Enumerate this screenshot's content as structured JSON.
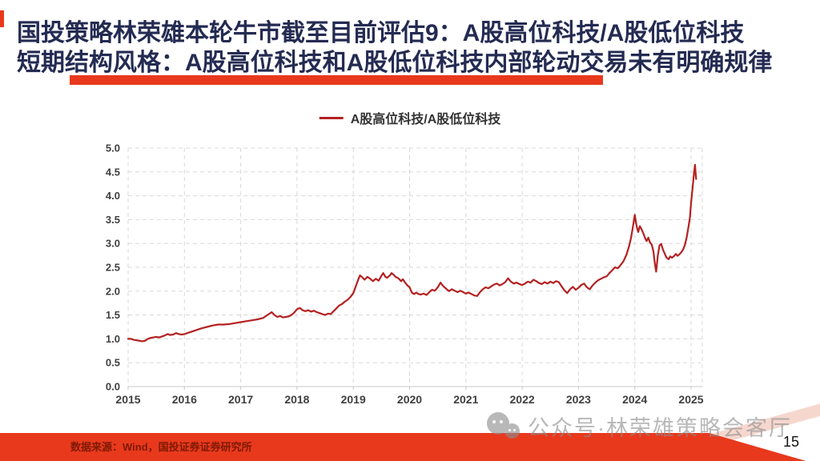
{
  "colors": {
    "accent": "#e8391d",
    "title": "#242b52",
    "line": "#b42121",
    "grid": "#d8d8d8",
    "tick": "#3f3f3f",
    "axis": "#c9c9c9",
    "footer_text": "#7e1a05",
    "watermark": "#8d8d8d",
    "page": "#111111",
    "stripe": "#f6d7ce"
  },
  "header": {
    "title_line1": "国投策略林荣雄本轮牛市截至目前评估9：A股高位科技/A股低位科技",
    "title_line2": "短期结构风格：A股高位科技和A股低位科技内部轮动交易未有明确规律"
  },
  "legend": {
    "label": "A股高位科技/A股低位科技"
  },
  "chart_data": {
    "type": "line",
    "title": "A股高位科技/A股低位科技",
    "xlabel": "",
    "ylabel": "",
    "xlim": [
      2015,
      2025.2
    ],
    "ylim": [
      0,
      5
    ],
    "grid": "dashed",
    "legend_position": "top-center",
    "xticks": [
      "2015",
      "2016",
      "2017",
      "2018",
      "2019",
      "2020",
      "2021",
      "2022",
      "2023",
      "2024",
      "2025"
    ],
    "yticks": [
      "0.0",
      "0.5",
      "1.0",
      "1.5",
      "2.0",
      "2.5",
      "3.0",
      "3.5",
      "4.0",
      "4.5",
      "5.0"
    ],
    "series": [
      {
        "name": "A股高位科技/A股低位科技",
        "points": [
          [
            2015.0,
            1.0
          ],
          [
            2015.05,
            1.0
          ],
          [
            2015.1,
            0.98
          ],
          [
            2015.15,
            0.97
          ],
          [
            2015.2,
            0.96
          ],
          [
            2015.25,
            0.95
          ],
          [
            2015.3,
            0.96
          ],
          [
            2015.35,
            1.0
          ],
          [
            2015.4,
            1.02
          ],
          [
            2015.45,
            1.03
          ],
          [
            2015.5,
            1.04
          ],
          [
            2015.55,
            1.03
          ],
          [
            2015.6,
            1.05
          ],
          [
            2015.65,
            1.07
          ],
          [
            2015.7,
            1.1
          ],
          [
            2015.75,
            1.08
          ],
          [
            2015.8,
            1.09
          ],
          [
            2015.85,
            1.12
          ],
          [
            2015.9,
            1.1
          ],
          [
            2015.95,
            1.09
          ],
          [
            2016.0,
            1.1
          ],
          [
            2016.1,
            1.14
          ],
          [
            2016.2,
            1.18
          ],
          [
            2016.3,
            1.22
          ],
          [
            2016.4,
            1.25
          ],
          [
            2016.5,
            1.28
          ],
          [
            2016.6,
            1.3
          ],
          [
            2016.7,
            1.3
          ],
          [
            2016.8,
            1.31
          ],
          [
            2016.9,
            1.33
          ],
          [
            2017.0,
            1.35
          ],
          [
            2017.1,
            1.37
          ],
          [
            2017.2,
            1.39
          ],
          [
            2017.3,
            1.41
          ],
          [
            2017.4,
            1.44
          ],
          [
            2017.5,
            1.52
          ],
          [
            2017.55,
            1.56
          ],
          [
            2017.6,
            1.5
          ],
          [
            2017.65,
            1.46
          ],
          [
            2017.7,
            1.48
          ],
          [
            2017.75,
            1.45
          ],
          [
            2017.8,
            1.46
          ],
          [
            2017.85,
            1.47
          ],
          [
            2017.9,
            1.5
          ],
          [
            2017.95,
            1.55
          ],
          [
            2018.0,
            1.62
          ],
          [
            2018.05,
            1.65
          ],
          [
            2018.1,
            1.6
          ],
          [
            2018.15,
            1.58
          ],
          [
            2018.2,
            1.6
          ],
          [
            2018.25,
            1.57
          ],
          [
            2018.3,
            1.59
          ],
          [
            2018.35,
            1.56
          ],
          [
            2018.4,
            1.54
          ],
          [
            2018.45,
            1.52
          ],
          [
            2018.5,
            1.5
          ],
          [
            2018.55,
            1.53
          ],
          [
            2018.6,
            1.52
          ],
          [
            2018.65,
            1.58
          ],
          [
            2018.7,
            1.64
          ],
          [
            2018.75,
            1.7
          ],
          [
            2018.8,
            1.73
          ],
          [
            2018.85,
            1.78
          ],
          [
            2018.9,
            1.82
          ],
          [
            2018.95,
            1.88
          ],
          [
            2019.0,
            1.96
          ],
          [
            2019.05,
            2.12
          ],
          [
            2019.1,
            2.28
          ],
          [
            2019.12,
            2.33
          ],
          [
            2019.15,
            2.3
          ],
          [
            2019.2,
            2.24
          ],
          [
            2019.25,
            2.3
          ],
          [
            2019.3,
            2.26
          ],
          [
            2019.35,
            2.21
          ],
          [
            2019.4,
            2.26
          ],
          [
            2019.45,
            2.22
          ],
          [
            2019.5,
            2.32
          ],
          [
            2019.53,
            2.38
          ],
          [
            2019.57,
            2.3
          ],
          [
            2019.6,
            2.28
          ],
          [
            2019.65,
            2.33
          ],
          [
            2019.68,
            2.38
          ],
          [
            2019.72,
            2.34
          ],
          [
            2019.75,
            2.3
          ],
          [
            2019.8,
            2.27
          ],
          [
            2019.85,
            2.21
          ],
          [
            2019.88,
            2.25
          ],
          [
            2019.92,
            2.18
          ],
          [
            2019.96,
            2.12
          ],
          [
            2020.0,
            2.08
          ],
          [
            2020.04,
            1.97
          ],
          [
            2020.08,
            1.94
          ],
          [
            2020.12,
            1.97
          ],
          [
            2020.16,
            1.94
          ],
          [
            2020.2,
            1.93
          ],
          [
            2020.25,
            1.95
          ],
          [
            2020.3,
            1.92
          ],
          [
            2020.35,
            1.98
          ],
          [
            2020.4,
            2.03
          ],
          [
            2020.45,
            2.01
          ],
          [
            2020.5,
            2.08
          ],
          [
            2020.55,
            2.18
          ],
          [
            2020.58,
            2.13
          ],
          [
            2020.62,
            2.08
          ],
          [
            2020.66,
            2.04
          ],
          [
            2020.7,
            2.0
          ],
          [
            2020.75,
            2.04
          ],
          [
            2020.8,
            2.01
          ],
          [
            2020.85,
            1.98
          ],
          [
            2020.9,
            2.01
          ],
          [
            2020.95,
            1.98
          ],
          [
            2021.0,
            1.95
          ],
          [
            2021.05,
            1.97
          ],
          [
            2021.1,
            1.94
          ],
          [
            2021.15,
            1.91
          ],
          [
            2021.2,
            1.9
          ],
          [
            2021.25,
            1.98
          ],
          [
            2021.3,
            2.04
          ],
          [
            2021.35,
            2.08
          ],
          [
            2021.4,
            2.06
          ],
          [
            2021.45,
            2.1
          ],
          [
            2021.5,
            2.14
          ],
          [
            2021.55,
            2.16
          ],
          [
            2021.6,
            2.12
          ],
          [
            2021.65,
            2.15
          ],
          [
            2021.7,
            2.19
          ],
          [
            2021.75,
            2.27
          ],
          [
            2021.8,
            2.2
          ],
          [
            2021.85,
            2.16
          ],
          [
            2021.9,
            2.18
          ],
          [
            2021.95,
            2.15
          ],
          [
            2022.0,
            2.13
          ],
          [
            2022.05,
            2.16
          ],
          [
            2022.1,
            2.2
          ],
          [
            2022.15,
            2.18
          ],
          [
            2022.2,
            2.24
          ],
          [
            2022.25,
            2.21
          ],
          [
            2022.3,
            2.17
          ],
          [
            2022.35,
            2.15
          ],
          [
            2022.4,
            2.19
          ],
          [
            2022.45,
            2.16
          ],
          [
            2022.5,
            2.2
          ],
          [
            2022.55,
            2.17
          ],
          [
            2022.6,
            2.21
          ],
          [
            2022.65,
            2.19
          ],
          [
            2022.7,
            2.1
          ],
          [
            2022.75,
            2.02
          ],
          [
            2022.8,
            1.96
          ],
          [
            2022.85,
            2.04
          ],
          [
            2022.9,
            2.09
          ],
          [
            2022.95,
            2.03
          ],
          [
            2023.0,
            2.07
          ],
          [
            2023.05,
            2.13
          ],
          [
            2023.1,
            2.16
          ],
          [
            2023.15,
            2.08
          ],
          [
            2023.2,
            2.04
          ],
          [
            2023.25,
            2.12
          ],
          [
            2023.3,
            2.18
          ],
          [
            2023.35,
            2.23
          ],
          [
            2023.4,
            2.26
          ],
          [
            2023.45,
            2.29
          ],
          [
            2023.5,
            2.31
          ],
          [
            2023.55,
            2.38
          ],
          [
            2023.6,
            2.44
          ],
          [
            2023.65,
            2.5
          ],
          [
            2023.7,
            2.48
          ],
          [
            2023.75,
            2.55
          ],
          [
            2023.8,
            2.63
          ],
          [
            2023.85,
            2.76
          ],
          [
            2023.9,
            2.95
          ],
          [
            2023.93,
            3.1
          ],
          [
            2023.96,
            3.3
          ],
          [
            2024.0,
            3.6
          ],
          [
            2024.03,
            3.38
          ],
          [
            2024.06,
            3.24
          ],
          [
            2024.09,
            3.36
          ],
          [
            2024.12,
            3.3
          ],
          [
            2024.15,
            3.22
          ],
          [
            2024.18,
            3.12
          ],
          [
            2024.21,
            3.05
          ],
          [
            2024.24,
            3.12
          ],
          [
            2024.27,
            3.02
          ],
          [
            2024.3,
            2.98
          ],
          [
            2024.33,
            2.84
          ],
          [
            2024.36,
            2.55
          ],
          [
            2024.38,
            2.41
          ],
          [
            2024.41,
            2.75
          ],
          [
            2024.44,
            2.96
          ],
          [
            2024.47,
            2.99
          ],
          [
            2024.5,
            2.87
          ],
          [
            2024.53,
            2.79
          ],
          [
            2024.56,
            2.71
          ],
          [
            2024.6,
            2.67
          ],
          [
            2024.63,
            2.73
          ],
          [
            2024.66,
            2.7
          ],
          [
            2024.7,
            2.74
          ],
          [
            2024.73,
            2.78
          ],
          [
            2024.76,
            2.74
          ],
          [
            2024.8,
            2.78
          ],
          [
            2024.83,
            2.82
          ],
          [
            2024.86,
            2.88
          ],
          [
            2024.89,
            2.97
          ],
          [
            2024.92,
            3.12
          ],
          [
            2024.95,
            3.32
          ],
          [
            2024.98,
            3.55
          ],
          [
            2025.0,
            3.85
          ],
          [
            2025.03,
            4.2
          ],
          [
            2025.05,
            4.45
          ],
          [
            2025.07,
            4.65
          ],
          [
            2025.09,
            4.35
          ]
        ]
      }
    ]
  },
  "footer": {
    "source_text": "数据来源：Wind，国投证券证券研究所",
    "watermark_text": "公众号·林荣雄策略会客厅",
    "page_number": "15"
  }
}
